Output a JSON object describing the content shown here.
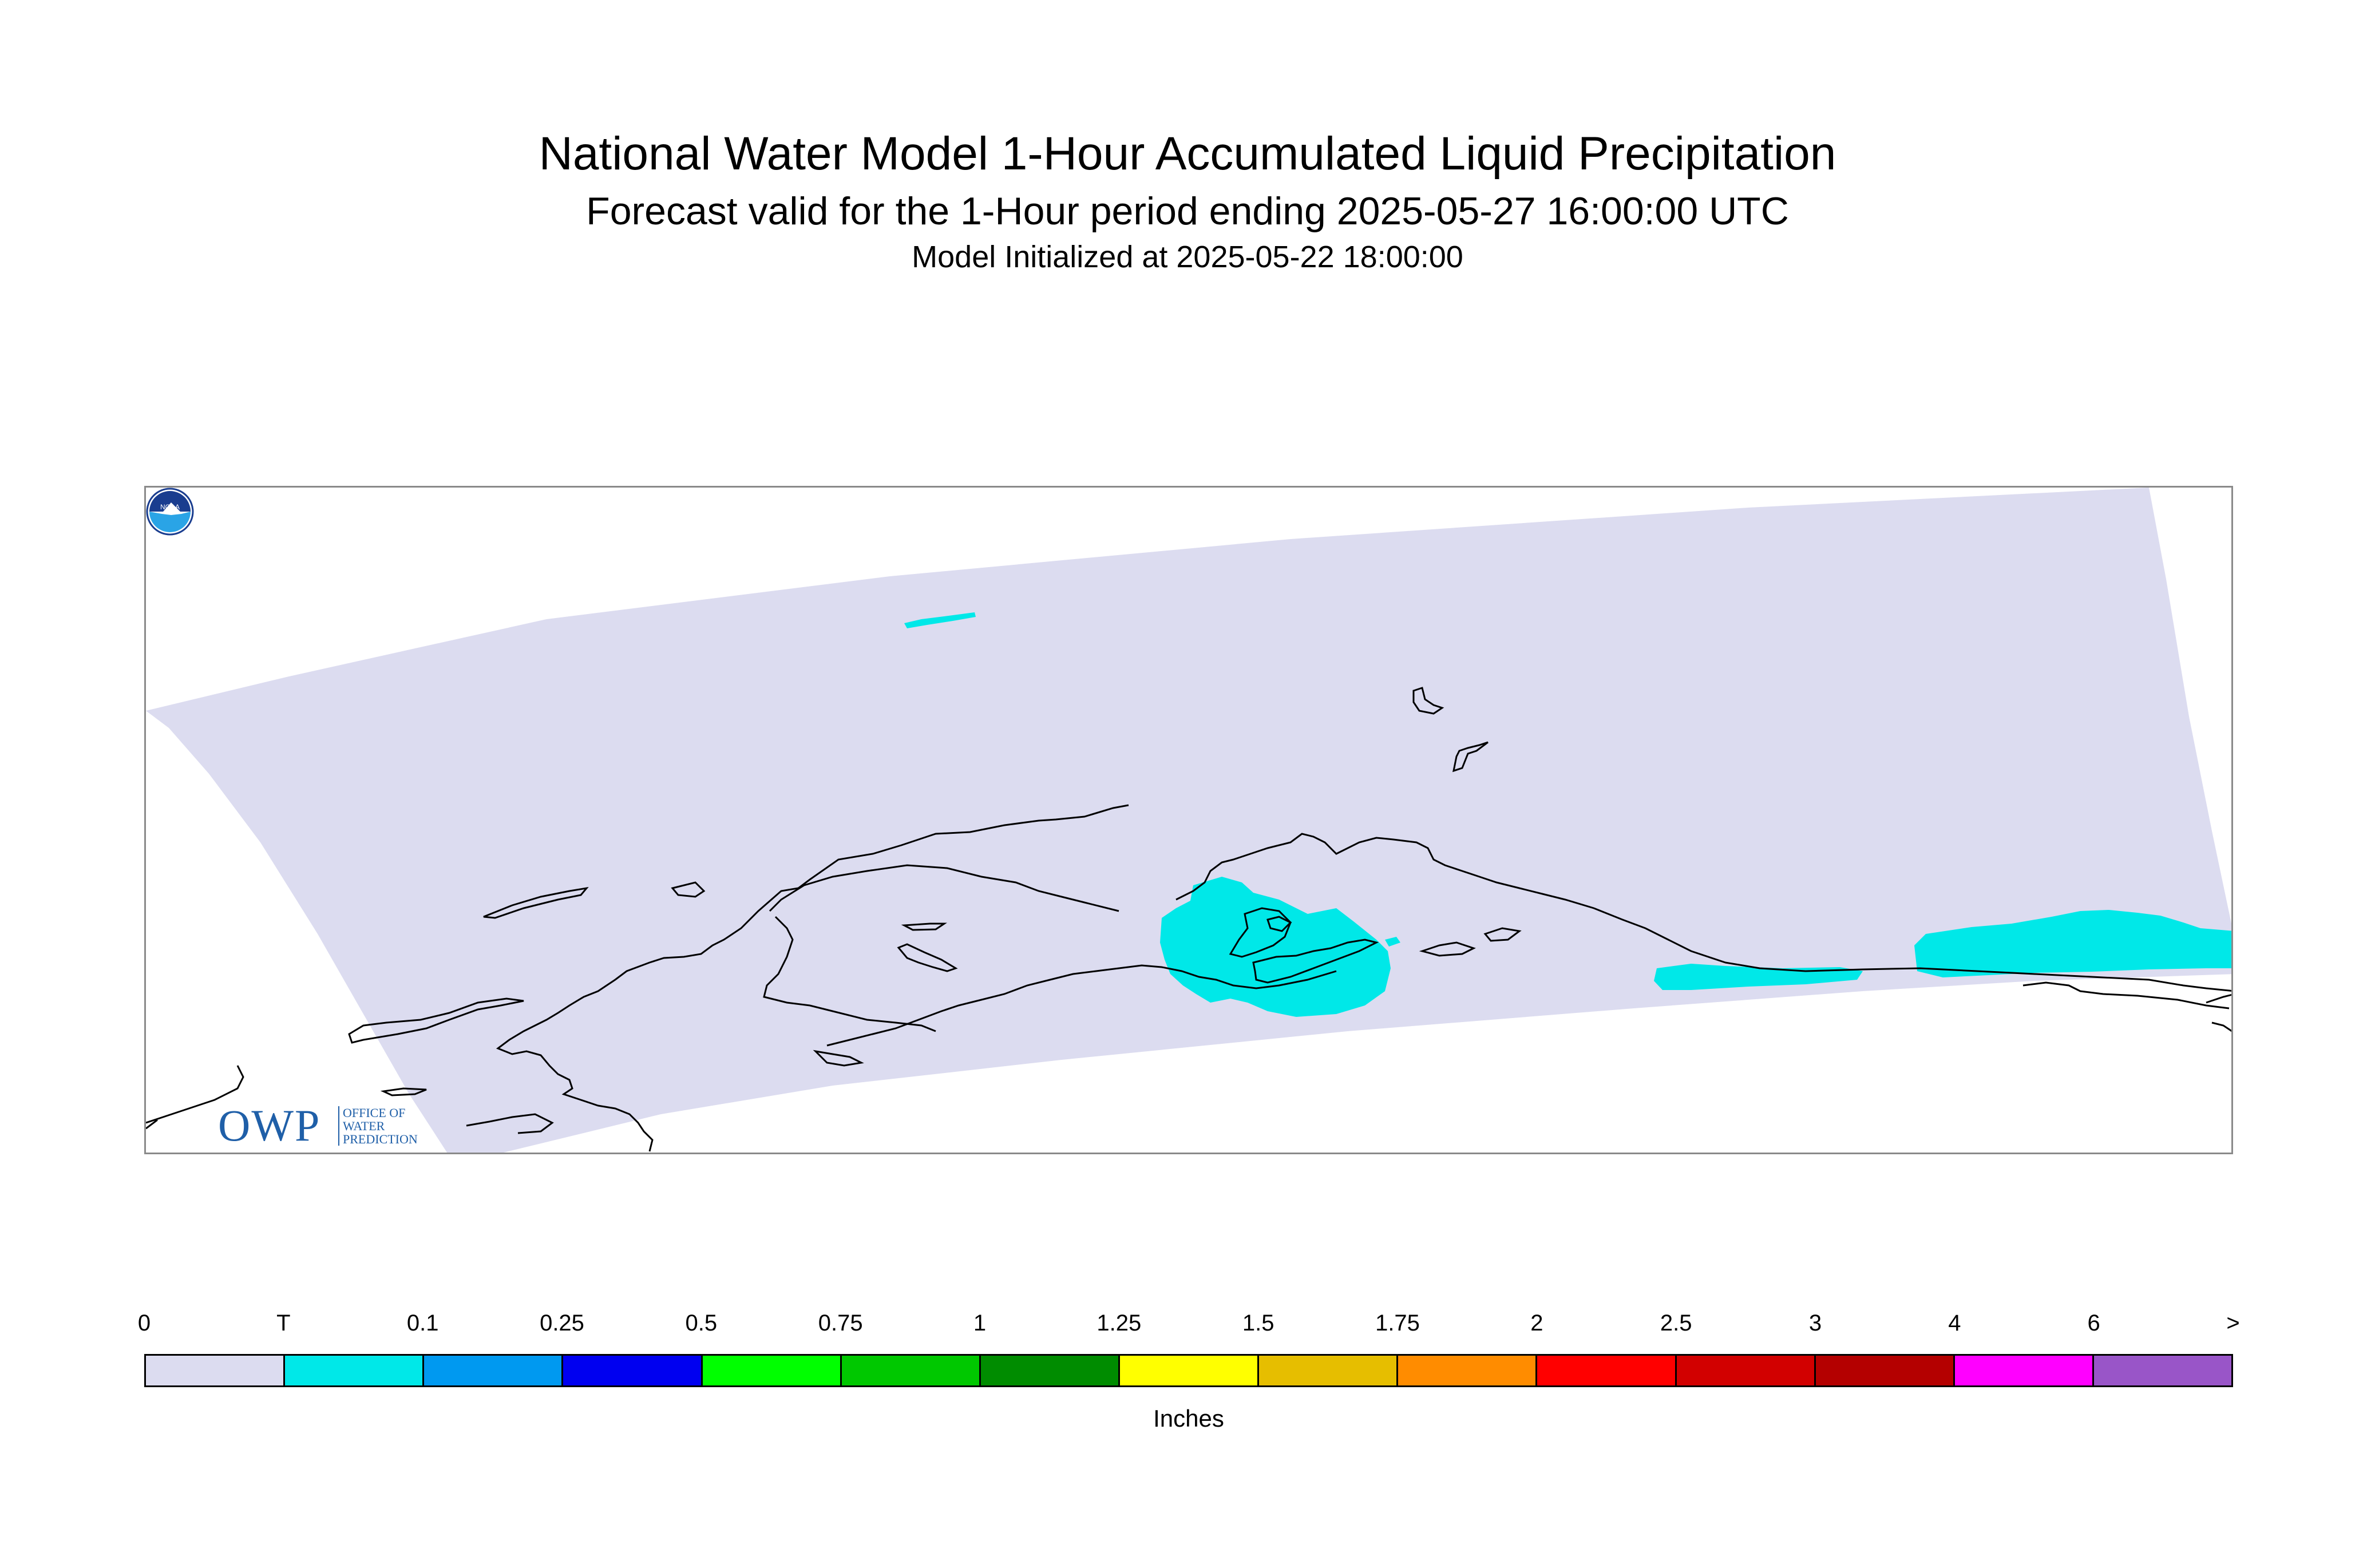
{
  "title": {
    "line1": "National Water Model 1-Hour Accumulated Liquid Precipitation",
    "line2": "Forecast valid for the 1-Hour period ending 2025-05-27 16:00:00 UTC",
    "line3": "Model Initialized at 2025-05-22 18:00:00"
  },
  "map": {
    "domain_fill_color": "#dcdcf0",
    "precip_color": "#00e8e8",
    "coastline_color": "#000000"
  },
  "logos": {
    "owp_letters": "OWP",
    "owp_text": "OFFICE OF WATER PREDICTION",
    "noaa_text": "NOAA"
  },
  "legend": {
    "labels": [
      "0",
      "T",
      "0.1",
      "0.25",
      "0.5",
      "0.75",
      "1",
      "1.25",
      "1.5",
      "1.75",
      "2",
      "2.5",
      "3",
      "4",
      "6",
      ">"
    ],
    "colors": [
      "#dcdcf0",
      "#00e8e8",
      "#0099f0",
      "#0000f0",
      "#00ff00",
      "#00c800",
      "#008c00",
      "#ffff00",
      "#e6be00",
      "#ff8c00",
      "#ff0000",
      "#d20000",
      "#b40000",
      "#ff00ff",
      "#9955c8"
    ],
    "units": "Inches"
  }
}
